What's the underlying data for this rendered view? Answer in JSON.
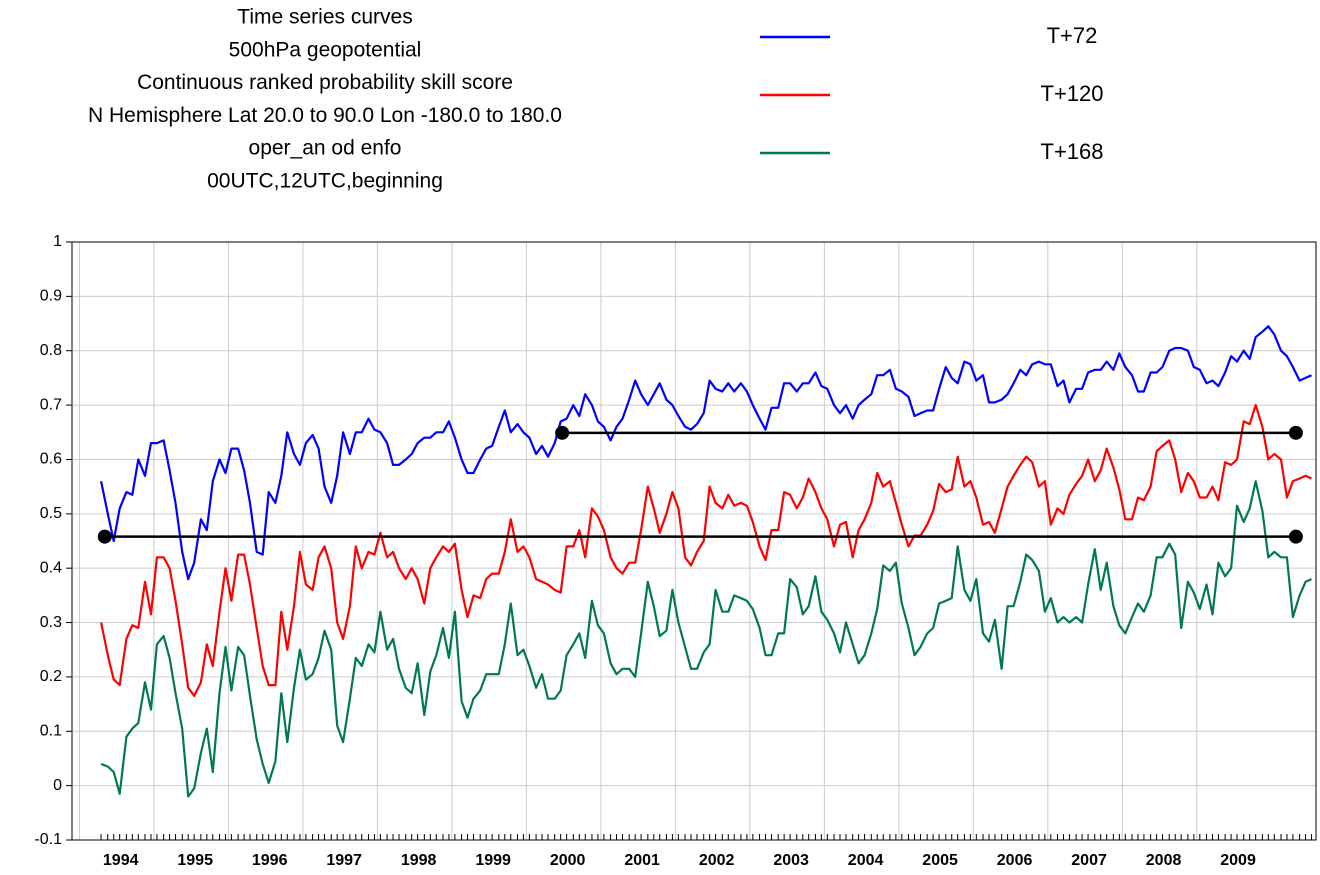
{
  "chart_data": {
    "type": "line",
    "title_lines": [
      "Time series curves",
      "500hPa geopotential",
      "Continuous ranked probability skill score",
      "N Hemisphere  Lat  20.0 to 90.0 Lon  -180.0 to  180.0",
      "oper_an od enfo",
      "00UTC,12UTC,beginning"
    ],
    "x": [
      1994.29,
      1994.38,
      1994.46,
      1994.54,
      1994.63,
      1994.71,
      1994.79,
      1994.88,
      1994.96,
      1995.04,
      1995.13,
      1995.21,
      1995.29,
      1995.38,
      1995.46,
      1995.54,
      1995.63,
      1995.71,
      1995.79,
      1995.88,
      1995.96,
      1996.04,
      1996.13,
      1996.21,
      1996.29,
      1996.38,
      1996.46,
      1996.54,
      1996.63,
      1996.71,
      1996.79,
      1996.88,
      1996.96,
      1997.04,
      1997.13,
      1997.21,
      1997.29,
      1997.38,
      1997.46,
      1997.54,
      1997.63,
      1997.71,
      1997.79,
      1997.88,
      1997.96,
      1998.04,
      1998.13,
      1998.21,
      1998.29,
      1998.38,
      1998.46,
      1998.54,
      1998.63,
      1998.71,
      1998.79,
      1998.88,
      1998.96,
      1999.04,
      1999.13,
      1999.21,
      1999.29,
      1999.38,
      1999.46,
      1999.54,
      1999.63,
      1999.71,
      1999.79,
      1999.88,
      1999.96,
      2000.04,
      2000.13,
      2000.21,
      2000.29,
      2000.38,
      2000.46,
      2000.54,
      2000.63,
      2000.71,
      2000.79,
      2000.88,
      2000.96,
      2001.04,
      2001.13,
      2001.21,
      2001.29,
      2001.38,
      2001.46,
      2001.54,
      2001.63,
      2001.71,
      2001.79,
      2001.88,
      2001.96,
      2002.04,
      2002.13,
      2002.21,
      2002.29,
      2002.38,
      2002.46,
      2002.54,
      2002.63,
      2002.71,
      2002.79,
      2002.88,
      2002.96,
      2003.04,
      2003.13,
      2003.21,
      2003.29,
      2003.38,
      2003.46,
      2003.54,
      2003.63,
      2003.71,
      2003.79,
      2003.88,
      2003.96,
      2004.04,
      2004.13,
      2004.21,
      2004.29,
      2004.38,
      2004.46,
      2004.54,
      2004.63,
      2004.71,
      2004.79,
      2004.88,
      2004.96,
      2005.04,
      2005.13,
      2005.21,
      2005.29,
      2005.38,
      2005.46,
      2005.54,
      2005.63,
      2005.71,
      2005.79,
      2005.88,
      2005.96,
      2006.04,
      2006.13,
      2006.21,
      2006.29,
      2006.38,
      2006.46,
      2006.54,
      2006.63,
      2006.71,
      2006.79,
      2006.88,
      2006.96,
      2007.04,
      2007.13,
      2007.21,
      2007.29,
      2007.38,
      2007.46,
      2007.54,
      2007.63,
      2007.71,
      2007.79,
      2007.88,
      2007.96,
      2008.04,
      2008.13,
      2008.21,
      2008.29,
      2008.38,
      2008.46,
      2008.54,
      2008.63,
      2008.71,
      2008.79,
      2008.88,
      2008.96,
      2009.04,
      2009.13,
      2009.21,
      2009.29,
      2009.38,
      2009.46,
      2009.54,
      2009.63,
      2009.71,
      2009.79,
      2009.88,
      2009.96,
      2010.04,
      2010.13,
      2010.21,
      2010.29,
      2010.38,
      2010.46,
      2010.54
    ],
    "series": [
      {
        "name": "T+72",
        "color": "#0000ff",
        "values": [
          0.56,
          0.5,
          0.45,
          0.51,
          0.54,
          0.535,
          0.6,
          0.57,
          0.63,
          0.63,
          0.635,
          0.58,
          0.52,
          0.43,
          0.38,
          0.41,
          0.49,
          0.47,
          0.56,
          0.6,
          0.575,
          0.62,
          0.62,
          0.58,
          0.52,
          0.43,
          0.425,
          0.54,
          0.52,
          0.57,
          0.65,
          0.61,
          0.59,
          0.63,
          0.645,
          0.62,
          0.55,
          0.52,
          0.57,
          0.65,
          0.61,
          0.65,
          0.65,
          0.675,
          0.655,
          0.65,
          0.63,
          0.59,
          0.59,
          0.6,
          0.61,
          0.63,
          0.64,
          0.64,
          0.65,
          0.65,
          0.67,
          0.64,
          0.6,
          0.575,
          0.575,
          0.6,
          0.62,
          0.625,
          0.66,
          0.69,
          0.65,
          0.665,
          0.65,
          0.64,
          0.61,
          0.625,
          0.605,
          0.63,
          0.67,
          0.675,
          0.7,
          0.68,
          0.72,
          0.7,
          0.67,
          0.66,
          0.635,
          0.66,
          0.675,
          0.71,
          0.745,
          0.72,
          0.7,
          0.72,
          0.74,
          0.71,
          0.7,
          0.68,
          0.66,
          0.655,
          0.665,
          0.685,
          0.745,
          0.73,
          0.725,
          0.74,
          0.725,
          0.74,
          0.725,
          0.7,
          0.675,
          0.655,
          0.695,
          0.695,
          0.74,
          0.74,
          0.725,
          0.74,
          0.74,
          0.76,
          0.735,
          0.73,
          0.7,
          0.685,
          0.7,
          0.675,
          0.7,
          0.71,
          0.72,
          0.755,
          0.755,
          0.765,
          0.73,
          0.725,
          0.715,
          0.68,
          0.685,
          0.69,
          0.69,
          0.73,
          0.77,
          0.75,
          0.74,
          0.78,
          0.775,
          0.745,
          0.755,
          0.705,
          0.705,
          0.71,
          0.72,
          0.74,
          0.765,
          0.755,
          0.775,
          0.78,
          0.775,
          0.775,
          0.735,
          0.745,
          0.705,
          0.73,
          0.73,
          0.76,
          0.765,
          0.765,
          0.78,
          0.765,
          0.795,
          0.77,
          0.755,
          0.725,
          0.725,
          0.76,
          0.76,
          0.77,
          0.8,
          0.805,
          0.805,
          0.8,
          0.77,
          0.765,
          0.74,
          0.745,
          0.735,
          0.76,
          0.79,
          0.78,
          0.8,
          0.785,
          0.825,
          0.835,
          0.845,
          0.83,
          0.8,
          0.79,
          0.77,
          0.745,
          0.75,
          0.755
        ]
      },
      {
        "name": "T+120",
        "color": "#ff0000",
        "values": [
          0.3,
          0.24,
          0.195,
          0.185,
          0.27,
          0.295,
          0.29,
          0.375,
          0.315,
          0.42,
          0.42,
          0.4,
          0.34,
          0.26,
          0.18,
          0.165,
          0.19,
          0.26,
          0.22,
          0.32,
          0.4,
          0.34,
          0.425,
          0.425,
          0.37,
          0.29,
          0.22,
          0.185,
          0.185,
          0.32,
          0.25,
          0.33,
          0.43,
          0.37,
          0.36,
          0.42,
          0.44,
          0.4,
          0.3,
          0.27,
          0.33,
          0.44,
          0.4,
          0.43,
          0.425,
          0.465,
          0.42,
          0.43,
          0.4,
          0.38,
          0.4,
          0.38,
          0.335,
          0.4,
          0.42,
          0.44,
          0.43,
          0.445,
          0.36,
          0.31,
          0.35,
          0.345,
          0.38,
          0.39,
          0.39,
          0.43,
          0.49,
          0.43,
          0.44,
          0.42,
          0.38,
          0.375,
          0.37,
          0.36,
          0.355,
          0.44,
          0.44,
          0.47,
          0.42,
          0.51,
          0.495,
          0.47,
          0.42,
          0.4,
          0.39,
          0.41,
          0.41,
          0.47,
          0.55,
          0.51,
          0.465,
          0.5,
          0.54,
          0.51,
          0.42,
          0.405,
          0.43,
          0.45,
          0.55,
          0.52,
          0.51,
          0.535,
          0.515,
          0.52,
          0.515,
          0.485,
          0.44,
          0.415,
          0.47,
          0.47,
          0.54,
          0.535,
          0.51,
          0.53,
          0.565,
          0.54,
          0.51,
          0.49,
          0.44,
          0.48,
          0.485,
          0.42,
          0.47,
          0.49,
          0.52,
          0.575,
          0.55,
          0.56,
          0.52,
          0.48,
          0.44,
          0.46,
          0.46,
          0.48,
          0.505,
          0.555,
          0.54,
          0.545,
          0.605,
          0.55,
          0.56,
          0.53,
          0.48,
          0.485,
          0.465,
          0.51,
          0.55,
          0.57,
          0.59,
          0.605,
          0.595,
          0.55,
          0.56,
          0.48,
          0.51,
          0.5,
          0.535,
          0.555,
          0.57,
          0.6,
          0.56,
          0.58,
          0.62,
          0.585,
          0.545,
          0.49,
          0.49,
          0.53,
          0.525,
          0.55,
          0.615,
          0.625,
          0.635,
          0.6,
          0.54,
          0.575,
          0.56,
          0.53,
          0.53,
          0.55,
          0.525,
          0.595,
          0.59,
          0.6,
          0.67,
          0.665,
          0.7,
          0.66,
          0.6,
          0.61,
          0.6,
          0.53,
          0.56,
          0.565,
          0.57,
          0.565
        ]
      },
      {
        "name": "T+168",
        "color": "#007a4d",
        "values": [
          0.04,
          0.035,
          0.025,
          -0.015,
          0.09,
          0.105,
          0.115,
          0.19,
          0.14,
          0.26,
          0.275,
          0.235,
          0.17,
          0.105,
          -0.02,
          -0.005,
          0.06,
          0.105,
          0.025,
          0.17,
          0.255,
          0.175,
          0.255,
          0.24,
          0.165,
          0.085,
          0.04,
          0.005,
          0.045,
          0.17,
          0.08,
          0.18,
          0.25,
          0.195,
          0.205,
          0.235,
          0.285,
          0.25,
          0.11,
          0.08,
          0.16,
          0.235,
          0.22,
          0.26,
          0.245,
          0.32,
          0.25,
          0.27,
          0.215,
          0.18,
          0.17,
          0.225,
          0.13,
          0.21,
          0.24,
          0.29,
          0.235,
          0.32,
          0.155,
          0.125,
          0.16,
          0.175,
          0.205,
          0.205,
          0.205,
          0.26,
          0.335,
          0.24,
          0.25,
          0.22,
          0.18,
          0.205,
          0.16,
          0.16,
          0.175,
          0.24,
          0.26,
          0.28,
          0.235,
          0.34,
          0.295,
          0.28,
          0.225,
          0.205,
          0.215,
          0.215,
          0.2,
          0.28,
          0.375,
          0.33,
          0.275,
          0.285,
          0.36,
          0.3,
          0.255,
          0.215,
          0.215,
          0.245,
          0.26,
          0.36,
          0.32,
          0.32,
          0.35,
          0.345,
          0.34,
          0.325,
          0.29,
          0.24,
          0.24,
          0.28,
          0.28,
          0.38,
          0.365,
          0.315,
          0.33,
          0.385,
          0.32,
          0.305,
          0.28,
          0.245,
          0.3,
          0.26,
          0.225,
          0.24,
          0.28,
          0.325,
          0.405,
          0.395,
          0.41,
          0.335,
          0.29,
          0.24,
          0.255,
          0.28,
          0.29,
          0.335,
          0.34,
          0.345,
          0.44,
          0.36,
          0.34,
          0.38,
          0.28,
          0.265,
          0.305,
          0.215,
          0.33,
          0.33,
          0.375,
          0.425,
          0.415,
          0.395,
          0.32,
          0.345,
          0.3,
          0.31,
          0.3,
          0.31,
          0.3,
          0.37,
          0.435,
          0.36,
          0.41,
          0.33,
          0.295,
          0.28,
          0.31,
          0.335,
          0.32,
          0.35,
          0.42,
          0.42,
          0.445,
          0.425,
          0.29,
          0.375,
          0.355,
          0.325,
          0.37,
          0.315,
          0.41,
          0.385,
          0.4,
          0.515,
          0.485,
          0.51,
          0.56,
          0.505,
          0.42,
          0.43,
          0.42,
          0.42,
          0.31,
          0.35,
          0.375,
          0.38
        ]
      }
    ],
    "xlim": [
      1993.9,
      2010.6
    ],
    "xticks": [
      1994,
      1995,
      1996,
      1997,
      1998,
      1999,
      2000,
      2001,
      2002,
      2003,
      2004,
      2005,
      2006,
      2007,
      2008,
      2009
    ],
    "ylim": [
      -0.1,
      1
    ],
    "yticks": [
      1,
      0.9,
      0.8,
      0.7,
      0.6,
      0.5,
      0.4,
      0.3,
      0.2,
      0.1,
      0,
      -0.1
    ],
    "grid": true,
    "reference_lines": [
      {
        "color": "#000000",
        "y": 0.649,
        "x": [
          2000.48,
          2010.33
        ]
      },
      {
        "color": "#000000",
        "y": 0.458,
        "x": [
          1994.34,
          2010.33
        ]
      }
    ]
  }
}
